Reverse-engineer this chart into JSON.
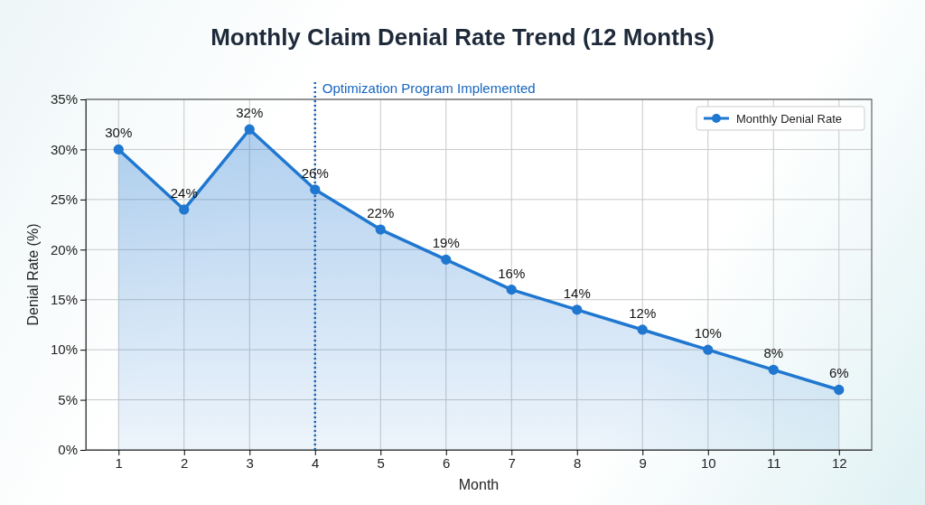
{
  "chart_data": {
    "type": "area",
    "title": "Monthly Claim Denial Rate Trend (12 Months)",
    "xlabel": "Month",
    "ylabel": "Denial Rate (%)",
    "x": [
      1,
      2,
      3,
      4,
      5,
      6,
      7,
      8,
      9,
      10,
      11,
      12
    ],
    "series": [
      {
        "name": "Monthly Denial Rate",
        "color": "#1f77d0",
        "values": [
          30,
          24,
          32,
          26,
          22,
          19,
          16,
          14,
          12,
          10,
          8,
          6
        ]
      }
    ],
    "xlim": [
      0.5,
      12.5
    ],
    "xticks": [
      1,
      2,
      3,
      4,
      5,
      6,
      7,
      8,
      9,
      10,
      11,
      12
    ],
    "ylim": [
      0,
      35
    ],
    "yticks": [
      {
        "value": 0,
        "label": "0%"
      },
      {
        "value": 5,
        "label": "5%"
      },
      {
        "value": 10,
        "label": "10%"
      },
      {
        "value": 15,
        "label": "15%"
      },
      {
        "value": 20,
        "label": "20%"
      },
      {
        "value": 25,
        "label": "25%"
      },
      {
        "value": 30,
        "label": "30%"
      },
      {
        "value": 35,
        "label": "35%"
      }
    ],
    "ref_lines": [
      {
        "axis": "x",
        "value": 4,
        "label": "Optimization Program Implemented",
        "color": "#1565c0",
        "line_style": "dotted"
      }
    ],
    "value_labels": [
      "30%",
      "24%",
      "32%",
      "26%",
      "22%",
      "19%",
      "16%",
      "14%",
      "12%",
      "10%",
      "8%",
      "6%"
    ],
    "grid": true,
    "legend": "top right",
    "marker": "circle",
    "line_style": "solid"
  }
}
